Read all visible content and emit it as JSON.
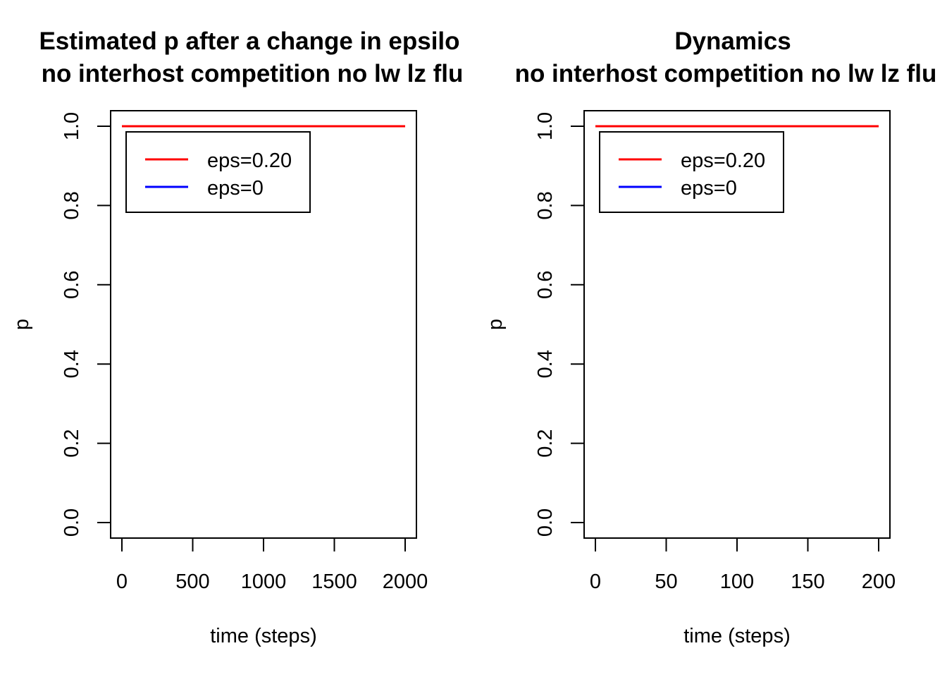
{
  "chart_data": [
    {
      "type": "line",
      "title": "Estimated p after a change in epsilo",
      "subtitle": "no interhost competition no lw lz flu",
      "xlabel": "time (steps)",
      "ylabel": "p",
      "xlim": [
        0,
        2000
      ],
      "ylim": [
        0,
        1
      ],
      "xticks": [
        "0",
        "500",
        "1000",
        "1500",
        "2000"
      ],
      "yticks": [
        "0.0",
        "0.2",
        "0.4",
        "0.6",
        "0.8",
        "1.0"
      ],
      "legend_position": "top-left",
      "series": [
        {
          "name": "eps=0.20",
          "color": "#ff0000",
          "x": [
            0,
            2000
          ],
          "y": [
            1.0,
            1.0
          ]
        },
        {
          "name": "eps=0",
          "color": "#0000ff",
          "x": [
            0,
            2000
          ],
          "y": [
            1.0,
            1.0
          ]
        }
      ]
    },
    {
      "type": "line",
      "title": "Dynamics",
      "subtitle": "no interhost competition no lw lz flu",
      "xlabel": "time (steps)",
      "ylabel": "p",
      "xlim": [
        0,
        200
      ],
      "ylim": [
        0,
        1
      ],
      "xticks": [
        "0",
        "50",
        "100",
        "150",
        "200"
      ],
      "yticks": [
        "0.0",
        "0.2",
        "0.4",
        "0.6",
        "0.8",
        "1.0"
      ],
      "legend_position": "top-left",
      "series": [
        {
          "name": "eps=0.20",
          "color": "#ff0000",
          "x": [
            0,
            200
          ],
          "y": [
            1.0,
            1.0
          ]
        },
        {
          "name": "eps=0",
          "color": "#0000ff",
          "x": [
            0,
            200
          ],
          "y": [
            1.0,
            1.0
          ]
        }
      ]
    }
  ]
}
